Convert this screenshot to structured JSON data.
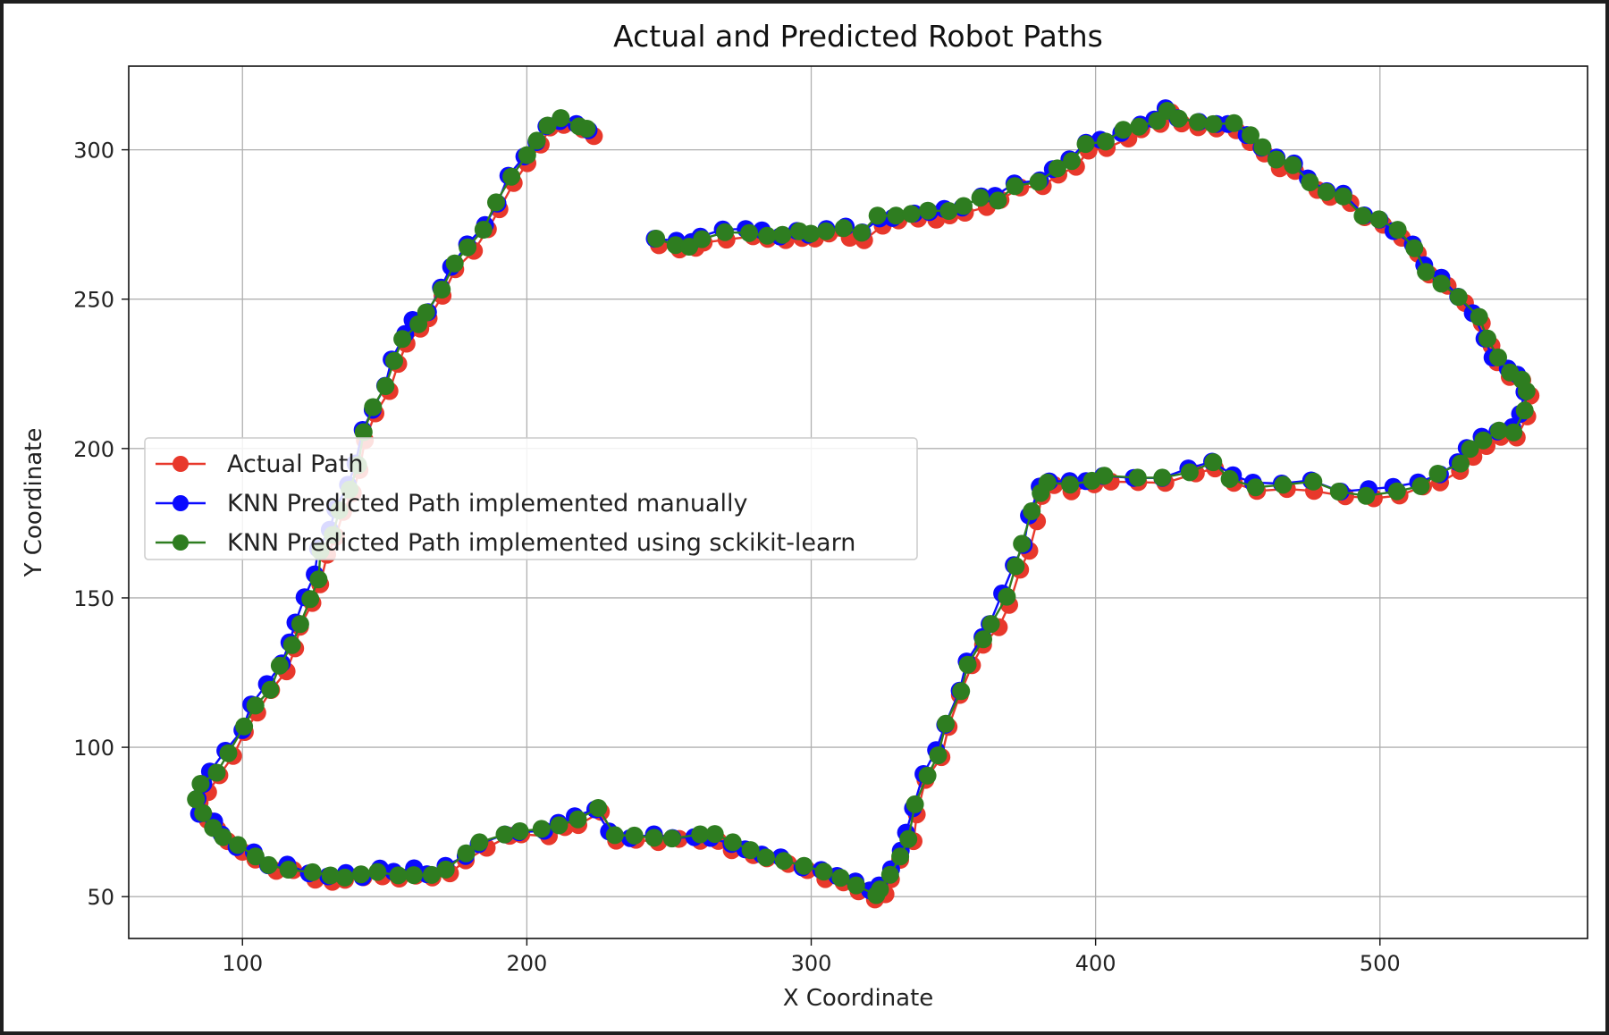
{
  "chart_data": {
    "type": "line",
    "title": "Actual and Predicted Robot Paths",
    "xlabel": "X Coordinate",
    "ylabel": "Y Coordinate",
    "xlim": [
      60,
      573
    ],
    "ylim": [
      36,
      328
    ],
    "xticks": [
      100,
      200,
      300,
      400,
      500
    ],
    "yticks": [
      50,
      100,
      150,
      200,
      250,
      300
    ],
    "grid": true,
    "legend_position": "center-left",
    "path": [
      [
        246,
        270
      ],
      [
        253,
        269
      ],
      [
        258,
        268
      ],
      [
        262,
        270
      ],
      [
        270,
        272
      ],
      [
        278,
        273
      ],
      [
        284,
        272
      ],
      [
        290,
        271
      ],
      [
        296,
        272
      ],
      [
        300,
        272
      ],
      [
        306,
        273
      ],
      [
        312,
        273
      ],
      [
        318,
        272
      ],
      [
        324,
        277
      ],
      [
        330,
        277
      ],
      [
        336,
        278
      ],
      [
        342,
        279
      ],
      [
        348,
        279
      ],
      [
        354,
        281
      ],
      [
        360,
        283
      ],
      [
        366,
        284
      ],
      [
        372,
        288
      ],
      [
        380,
        290
      ],
      [
        386,
        293
      ],
      [
        392,
        296
      ],
      [
        397,
        301
      ],
      [
        403,
        303
      ],
      [
        410,
        306
      ],
      [
        416,
        308
      ],
      [
        422,
        310
      ],
      [
        426,
        313
      ],
      [
        430,
        311
      ],
      [
        436,
        309
      ],
      [
        442,
        309
      ],
      [
        448,
        308
      ],
      [
        454,
        304
      ],
      [
        459,
        300
      ],
      [
        464,
        296
      ],
      [
        470,
        294
      ],
      [
        476,
        289
      ],
      [
        482,
        286
      ],
      [
        488,
        284
      ],
      [
        494,
        278
      ],
      [
        500,
        276
      ],
      [
        506,
        273
      ],
      [
        512,
        267
      ],
      [
        517,
        260
      ],
      [
        522,
        256
      ],
      [
        528,
        250
      ],
      [
        534,
        244
      ],
      [
        538,
        236
      ],
      [
        541,
        230
      ],
      [
        545,
        226
      ],
      [
        549,
        224
      ],
      [
        552,
        219
      ],
      [
        550,
        212
      ],
      [
        547,
        206
      ],
      [
        541,
        205
      ],
      [
        536,
        203
      ],
      [
        532,
        199
      ],
      [
        528,
        195
      ],
      [
        521,
        191
      ],
      [
        514,
        188
      ],
      [
        506,
        186
      ],
      [
        496,
        185
      ],
      [
        486,
        185
      ],
      [
        476,
        188
      ],
      [
        466,
        188
      ],
      [
        456,
        188
      ],
      [
        448,
        190
      ],
      [
        441,
        195
      ],
      [
        434,
        193
      ],
      [
        424,
        190
      ],
      [
        414,
        190
      ],
      [
        404,
        190
      ],
      [
        398,
        189
      ],
      [
        391,
        188
      ],
      [
        384,
        189
      ],
      [
        380,
        186
      ],
      [
        378,
        178
      ],
      [
        375,
        168
      ],
      [
        372,
        160
      ],
      [
        368,
        150
      ],
      [
        364,
        141
      ],
      [
        360,
        136
      ],
      [
        356,
        128
      ],
      [
        352,
        119
      ],
      [
        348,
        108
      ],
      [
        344,
        98
      ],
      [
        340,
        90
      ],
      [
        337,
        80
      ],
      [
        334,
        70
      ],
      [
        331,
        64
      ],
      [
        328,
        58
      ],
      [
        325,
        53
      ],
      [
        322,
        51
      ],
      [
        316,
        54
      ],
      [
        310,
        56
      ],
      [
        304,
        58
      ],
      [
        298,
        60
      ],
      [
        290,
        62
      ],
      [
        284,
        64
      ],
      [
        278,
        66
      ],
      [
        272,
        68
      ],
      [
        266,
        70
      ],
      [
        260,
        70
      ],
      [
        252,
        70
      ],
      [
        245,
        70
      ],
      [
        237,
        70
      ],
      [
        230,
        71
      ],
      [
        225,
        79
      ],
      [
        218,
        76
      ],
      [
        212,
        74
      ],
      [
        206,
        72
      ],
      [
        198,
        72
      ],
      [
        192,
        71
      ],
      [
        184,
        68
      ],
      [
        178,
        64
      ],
      [
        172,
        59
      ],
      [
        166,
        58
      ],
      [
        160,
        58
      ],
      [
        154,
        58
      ],
      [
        148,
        58
      ],
      [
        142,
        57
      ],
      [
        136,
        57
      ],
      [
        130,
        57
      ],
      [
        124,
        58
      ],
      [
        116,
        60
      ],
      [
        110,
        61
      ],
      [
        104,
        64
      ],
      [
        98,
        67
      ],
      [
        94,
        70
      ],
      [
        90,
        74
      ],
      [
        86,
        78
      ],
      [
        84,
        82
      ],
      [
        86,
        87
      ],
      [
        90,
        92
      ],
      [
        95,
        98
      ],
      [
        100,
        106
      ],
      [
        104,
        114
      ],
      [
        109,
        120
      ],
      [
        114,
        127
      ],
      [
        118,
        134
      ],
      [
        120,
        141
      ],
      [
        123,
        150
      ],
      [
        126,
        157
      ],
      [
        128,
        165
      ],
      [
        131,
        172
      ],
      [
        134,
        180
      ],
      [
        137,
        187
      ],
      [
        140,
        195
      ],
      [
        143,
        205
      ],
      [
        146,
        213
      ],
      [
        150,
        220
      ],
      [
        153,
        230
      ],
      [
        157,
        237
      ],
      [
        161,
        242
      ],
      [
        165,
        246
      ],
      [
        170,
        253
      ],
      [
        174,
        261
      ],
      [
        180,
        267
      ],
      [
        185,
        274
      ],
      [
        190,
        282
      ],
      [
        195,
        290
      ],
      [
        200,
        298
      ],
      [
        204,
        303
      ],
      [
        208,
        308
      ],
      [
        212,
        310
      ],
      [
        218,
        308
      ],
      [
        222,
        307
      ]
    ],
    "series": [
      {
        "name": "Actual Path",
        "color": "#e8382b",
        "offset": [
          1.0,
          -1.5
        ],
        "jitter_seed": 11
      },
      {
        "name": "KNN Predicted Path implemented manually",
        "color": "#0a0aff",
        "offset": [
          -0.5,
          0.5
        ],
        "jitter_seed": 23
      },
      {
        "name": "KNN Predicted Path implemented using sckikit-learn",
        "color": "#2e7d20",
        "offset": [
          0.0,
          0.0
        ],
        "jitter_seed": 37
      }
    ]
  }
}
